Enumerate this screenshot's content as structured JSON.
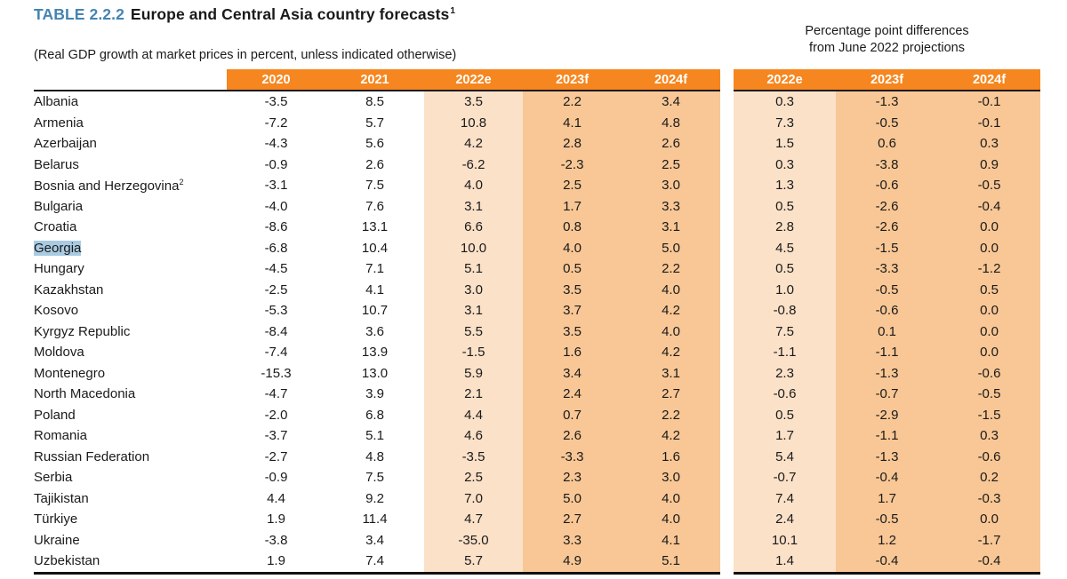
{
  "header": {
    "table_label": "TABLE 2.2.2",
    "title": "Europe and Central Asia country forecasts",
    "title_footnote": "1",
    "subtitle": "(Real GDP growth at market prices in percent, unless indicated otherwise)",
    "diff_caption_line1": "Percentage point differences",
    "diff_caption_line2": "from June 2022 projections"
  },
  "table": {
    "main_columns": [
      "2020",
      "2021",
      "2022e",
      "2023f",
      "2024f"
    ],
    "diff_columns": [
      "2022e",
      "2023f",
      "2024f"
    ],
    "rows": [
      {
        "country": "Albania",
        "footnote": "",
        "highlight": false,
        "main": [
          "-3.5",
          "8.5",
          "3.5",
          "2.2",
          "3.4"
        ],
        "diff": [
          "0.3",
          "-1.3",
          "-0.1"
        ]
      },
      {
        "country": "Armenia",
        "footnote": "",
        "highlight": false,
        "main": [
          "-7.2",
          "5.7",
          "10.8",
          "4.1",
          "4.8"
        ],
        "diff": [
          "7.3",
          "-0.5",
          "-0.1"
        ]
      },
      {
        "country": "Azerbaijan",
        "footnote": "",
        "highlight": false,
        "main": [
          "-4.3",
          "5.6",
          "4.2",
          "2.8",
          "2.6"
        ],
        "diff": [
          "1.5",
          "0.6",
          "0.3"
        ]
      },
      {
        "country": "Belarus",
        "footnote": "",
        "highlight": false,
        "main": [
          "-0.9",
          "2.6",
          "-6.2",
          "-2.3",
          "2.5"
        ],
        "diff": [
          "0.3",
          "-3.8",
          "0.9"
        ]
      },
      {
        "country": "Bosnia and Herzegovina",
        "footnote": "2",
        "highlight": false,
        "main": [
          "-3.1",
          "7.5",
          "4.0",
          "2.5",
          "3.0"
        ],
        "diff": [
          "1.3",
          "-0.6",
          "-0.5"
        ]
      },
      {
        "country": "Bulgaria",
        "footnote": "",
        "highlight": false,
        "main": [
          "-4.0",
          "7.6",
          "3.1",
          "1.7",
          "3.3"
        ],
        "diff": [
          "0.5",
          "-2.6",
          "-0.4"
        ]
      },
      {
        "country": "Croatia",
        "footnote": "",
        "highlight": false,
        "main": [
          "-8.6",
          "13.1",
          "6.6",
          "0.8",
          "3.1"
        ],
        "diff": [
          "2.8",
          "-2.6",
          "0.0"
        ]
      },
      {
        "country": "Georgia",
        "footnote": "",
        "highlight": true,
        "main": [
          "-6.8",
          "10.4",
          "10.0",
          "4.0",
          "5.0"
        ],
        "diff": [
          "4.5",
          "-1.5",
          "0.0"
        ]
      },
      {
        "country": "Hungary",
        "footnote": "",
        "highlight": false,
        "main": [
          "-4.5",
          "7.1",
          "5.1",
          "0.5",
          "2.2"
        ],
        "diff": [
          "0.5",
          "-3.3",
          "-1.2"
        ]
      },
      {
        "country": "Kazakhstan",
        "footnote": "",
        "highlight": false,
        "main": [
          "-2.5",
          "4.1",
          "3.0",
          "3.5",
          "4.0"
        ],
        "diff": [
          "1.0",
          "-0.5",
          "0.5"
        ]
      },
      {
        "country": "Kosovo",
        "footnote": "",
        "highlight": false,
        "main": [
          "-5.3",
          "10.7",
          "3.1",
          "3.7",
          "4.2"
        ],
        "diff": [
          "-0.8",
          "-0.6",
          "0.0"
        ]
      },
      {
        "country": "Kyrgyz Republic",
        "footnote": "",
        "highlight": false,
        "main": [
          "-8.4",
          "3.6",
          "5.5",
          "3.5",
          "4.0"
        ],
        "diff": [
          "7.5",
          "0.1",
          "0.0"
        ]
      },
      {
        "country": "Moldova",
        "footnote": "",
        "highlight": false,
        "main": [
          "-7.4",
          "13.9",
          "-1.5",
          "1.6",
          "4.2"
        ],
        "diff": [
          "-1.1",
          "-1.1",
          "0.0"
        ]
      },
      {
        "country": "Montenegro",
        "footnote": "",
        "highlight": false,
        "main": [
          "-15.3",
          "13.0",
          "5.9",
          "3.4",
          "3.1"
        ],
        "diff": [
          "2.3",
          "-1.3",
          "-0.6"
        ]
      },
      {
        "country": "North Macedonia",
        "footnote": "",
        "highlight": false,
        "main": [
          "-4.7",
          "3.9",
          "2.1",
          "2.4",
          "2.7"
        ],
        "diff": [
          "-0.6",
          "-0.7",
          "-0.5"
        ]
      },
      {
        "country": "Poland",
        "footnote": "",
        "highlight": false,
        "main": [
          "-2.0",
          "6.8",
          "4.4",
          "0.7",
          "2.2"
        ],
        "diff": [
          "0.5",
          "-2.9",
          "-1.5"
        ]
      },
      {
        "country": "Romania",
        "footnote": "",
        "highlight": false,
        "main": [
          "-3.7",
          "5.1",
          "4.6",
          "2.6",
          "4.2"
        ],
        "diff": [
          "1.7",
          "-1.1",
          "0.3"
        ]
      },
      {
        "country": "Russian Federation",
        "footnote": "",
        "highlight": false,
        "main": [
          "-2.7",
          "4.8",
          "-3.5",
          "-3.3",
          "1.6"
        ],
        "diff": [
          "5.4",
          "-1.3",
          "-0.6"
        ]
      },
      {
        "country": "Serbia",
        "footnote": "",
        "highlight": false,
        "main": [
          "-0.9",
          "7.5",
          "2.5",
          "2.3",
          "3.0"
        ],
        "diff": [
          "-0.7",
          "-0.4",
          "0.2"
        ]
      },
      {
        "country": "Tajikistan",
        "footnote": "",
        "highlight": false,
        "main": [
          "4.4",
          "9.2",
          "7.0",
          "5.0",
          "4.0"
        ],
        "diff": [
          "7.4",
          "1.7",
          "-0.3"
        ]
      },
      {
        "country": "Türkiye",
        "footnote": "",
        "highlight": false,
        "main": [
          "1.9",
          "11.4",
          "4.7",
          "2.7",
          "4.0"
        ],
        "diff": [
          "2.4",
          "-0.5",
          "0.0"
        ]
      },
      {
        "country": "Ukraine",
        "footnote": "",
        "highlight": false,
        "main": [
          "-3.8",
          "3.4",
          "-35.0",
          "3.3",
          "4.1"
        ],
        "diff": [
          "10.1",
          "1.2",
          "-1.7"
        ]
      },
      {
        "country": "Uzbekistan",
        "footnote": "",
        "highlight": false,
        "main": [
          "1.9",
          "7.4",
          "5.7",
          "4.9",
          "5.1"
        ],
        "diff": [
          "1.4",
          "-0.4",
          "-0.4"
        ]
      }
    ]
  },
  "colors": {
    "header_orange": "#F6861F",
    "col_light": "#FBE1C8",
    "col_dark": "#F8C795",
    "label_blue": "#4484B1",
    "selection_blue": "#A9CBE2"
  }
}
